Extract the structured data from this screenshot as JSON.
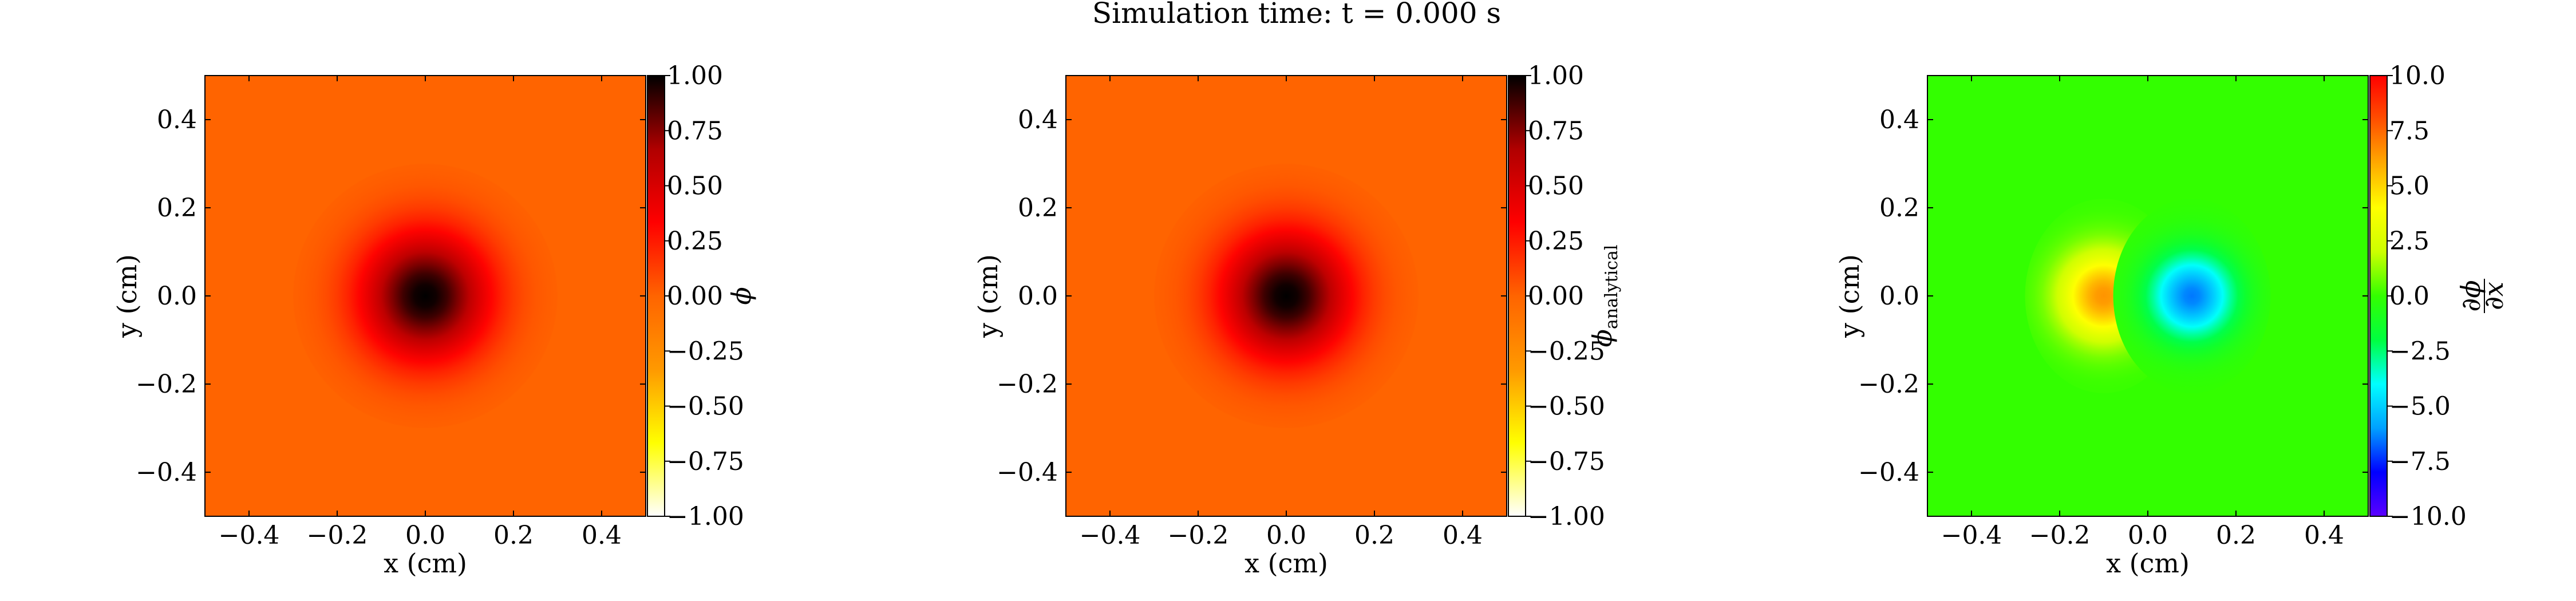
{
  "figure": {
    "suptitle": "Simulation time: t = 0.000 s"
  },
  "chart_data": [
    {
      "type": "heatmap",
      "field": "phi",
      "xlabel": "x  (cm)",
      "ylabel": "y  (cm)",
      "xlim": [
        -0.5,
        0.5
      ],
      "ylim": [
        -0.5,
        0.5
      ],
      "xticks": [
        -0.4,
        -0.2,
        0.0,
        0.2,
        0.4
      ],
      "xtick_labels": [
        "−0.4",
        "−0.2",
        "0.0",
        "0.2",
        "0.4"
      ],
      "yticks": [
        -0.4,
        -0.2,
        0.0,
        0.2,
        0.4
      ],
      "ytick_labels": [
        "−0.4",
        "−0.2",
        "0.0",
        "0.2",
        "0.4"
      ],
      "colormap": "gist_heat_r",
      "colormap_stops": [
        "#ffffff",
        "#ffff00",
        "#ff9900",
        "#ff6400",
        "#ff0000",
        "#b00000",
        "#000000"
      ],
      "background_value": 0.0,
      "peak": {
        "x": 0.0,
        "y": 0.0,
        "value": 1.0,
        "width": 0.1
      },
      "colorbar": {
        "label": "ϕ",
        "range": [
          -1.0,
          1.0
        ],
        "ticks": [
          1.0,
          0.75,
          0.5,
          0.25,
          0.0,
          -0.25,
          -0.5,
          -0.75,
          -1.0
        ],
        "tick_labels": [
          "1.00",
          "0.75",
          "0.50",
          "0.25",
          "0.00",
          "−0.25",
          "−0.50",
          "−0.75",
          "−1.00"
        ]
      }
    },
    {
      "type": "heatmap",
      "field": "phi_analytical",
      "xlabel": "x  (cm)",
      "ylabel": "y  (cm)",
      "xlim": [
        -0.5,
        0.5
      ],
      "ylim": [
        -0.5,
        0.5
      ],
      "xticks": [
        -0.4,
        -0.2,
        0.0,
        0.2,
        0.4
      ],
      "xtick_labels": [
        "−0.4",
        "−0.2",
        "0.0",
        "0.2",
        "0.4"
      ],
      "yticks": [
        -0.4,
        -0.2,
        0.0,
        0.2,
        0.4
      ],
      "ytick_labels": [
        "−0.4",
        "−0.2",
        "0.0",
        "0.2",
        "0.4"
      ],
      "colormap": "gist_heat_r",
      "colormap_stops": [
        "#ffffff",
        "#ffff00",
        "#ff9900",
        "#ff6400",
        "#ff0000",
        "#b00000",
        "#000000"
      ],
      "background_value": 0.0,
      "peak": {
        "x": 0.0,
        "y": 0.0,
        "value": 1.0,
        "width": 0.1
      },
      "colorbar": {
        "label": "ϕ",
        "label_subscript": "analytical",
        "range": [
          -1.0,
          1.0
        ],
        "ticks": [
          1.0,
          0.75,
          0.5,
          0.25,
          0.0,
          -0.25,
          -0.5,
          -0.75,
          -1.0
        ],
        "tick_labels": [
          "1.00",
          "0.75",
          "0.50",
          "0.25",
          "0.00",
          "−0.25",
          "−0.50",
          "−0.75",
          "−1.00"
        ]
      }
    },
    {
      "type": "heatmap",
      "field": "dphi_dx",
      "xlabel": "x  (cm)",
      "ylabel": "y  (cm)",
      "xlim": [
        -0.5,
        0.5
      ],
      "ylim": [
        -0.5,
        0.5
      ],
      "xticks": [
        -0.4,
        -0.2,
        0.0,
        0.2,
        0.4
      ],
      "xtick_labels": [
        "−0.4",
        "−0.2",
        "0.0",
        "0.2",
        "0.4"
      ],
      "yticks": [
        -0.4,
        -0.2,
        0.0,
        0.2,
        0.4
      ],
      "ytick_labels": [
        "−0.4",
        "−0.2",
        "0.0",
        "0.2",
        "0.4"
      ],
      "colormap": "gist_rainbow_r",
      "colormap_stops": [
        "#5a00ff",
        "#0000ff",
        "#00a0ff",
        "#00ffff",
        "#00ff40",
        "#33ff00",
        "#ccff00",
        "#ffff00",
        "#ffaa00",
        "#ff5000",
        "#ff0000"
      ],
      "background_value": 0.0,
      "dipole": {
        "max_x": -0.1,
        "min_x": 0.1,
        "y": 0.0,
        "amplitude": 6.5,
        "width": 0.07
      },
      "colorbar": {
        "label_num": "∂ϕ",
        "label_den": "∂x",
        "range": [
          -10.0,
          10.0
        ],
        "ticks": [
          10.0,
          7.5,
          5.0,
          2.5,
          0.0,
          -2.5,
          -5.0,
          -7.5,
          -10.0
        ],
        "tick_labels": [
          "10.0",
          "7.5",
          "5.0",
          "2.5",
          "0.0",
          "−2.5",
          "−5.0",
          "−7.5",
          "−10.0"
        ]
      }
    }
  ]
}
